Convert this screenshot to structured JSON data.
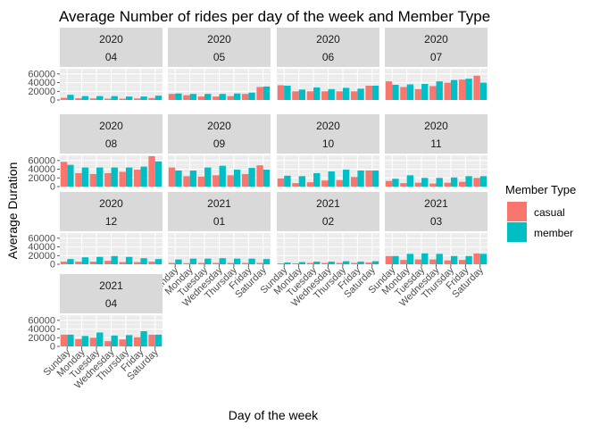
{
  "chart_data": {
    "type": "bar",
    "title": "Average Number of rides per day of the week and Member Type",
    "xlabel": "Day of the week",
    "ylabel": "Average Duration",
    "categories": [
      "Sunday",
      "Monday",
      "Tuesday",
      "Wednesday",
      "Thursday",
      "Friday",
      "Saturday"
    ],
    "ylim": [
      0,
      72000
    ],
    "yticks": [
      0,
      20000,
      40000,
      60000
    ],
    "yticklabels": [
      "0",
      "20000",
      "40000",
      "60000"
    ],
    "legend": {
      "title": "Member Type",
      "position": "right",
      "entries": [
        {
          "name": "casual",
          "color": "#F8766D"
        },
        {
          "name": "member",
          "color": "#00BFC4"
        }
      ]
    },
    "panels": [
      {
        "year": "2020",
        "month": "04",
        "casual": [
          5000,
          4000,
          3500,
          3000,
          3000,
          3500,
          4500
        ],
        "member": [
          12000,
          9000,
          9000,
          9000,
          8000,
          8000,
          10000
        ]
      },
      {
        "year": "2020",
        "month": "05",
        "casual": [
          14000,
          11000,
          8000,
          8000,
          9000,
          14000,
          30000
        ],
        "member": [
          15000,
          14000,
          14000,
          14000,
          15000,
          17000,
          31000
        ]
      },
      {
        "year": "2020",
        "month": "06",
        "casual": [
          34000,
          20000,
          20000,
          20000,
          20000,
          20000,
          33000
        ],
        "member": [
          33000,
          24000,
          29000,
          25000,
          28000,
          26000,
          33000
        ]
      },
      {
        "year": "2020",
        "month": "07",
        "casual": [
          43000,
          30000,
          25000,
          32000,
          40000,
          47000,
          56000
        ],
        "member": [
          35000,
          36000,
          37000,
          43000,
          46000,
          49000,
          40000
        ]
      },
      {
        "year": "2020",
        "month": "08",
        "casual": [
          57000,
          31000,
          29000,
          31000,
          34000,
          39000,
          70000
        ],
        "member": [
          50000,
          44000,
          44000,
          44000,
          44000,
          46000,
          58000
        ]
      },
      {
        "year": "2020",
        "month": "09",
        "casual": [
          44000,
          24000,
          23000,
          26000,
          26000,
          29000,
          49000
        ],
        "member": [
          37000,
          37000,
          44000,
          48000,
          39000,
          43000,
          39000
        ]
      },
      {
        "year": "2020",
        "month": "10",
        "casual": [
          19000,
          8000,
          10000,
          14000,
          15000,
          22000,
          37000
        ],
        "member": [
          25000,
          24000,
          31000,
          35000,
          39000,
          37000,
          37000
        ]
      },
      {
        "year": "2020",
        "month": "11",
        "casual": [
          13000,
          8000,
          9000,
          7000,
          9000,
          11000,
          20000
        ],
        "member": [
          18000,
          26000,
          20000,
          20000,
          21000,
          24000,
          24000
        ]
      },
      {
        "year": "2020",
        "month": "12",
        "casual": [
          6000,
          6000,
          6000,
          8000,
          5000,
          5000,
          6000
        ],
        "member": [
          12000,
          16000,
          17000,
          19000,
          17000,
          14000,
          12000
        ]
      },
      {
        "year": "2021",
        "month": "01",
        "casual": [
          3000,
          2500,
          3000,
          3000,
          3000,
          3000,
          3000
        ],
        "member": [
          11000,
          13000,
          13000,
          14000,
          13000,
          13000,
          12000
        ]
      },
      {
        "year": "2021",
        "month": "02",
        "casual": [
          2000,
          2000,
          3000,
          3000,
          3000,
          3000,
          4000
        ],
        "member": [
          4000,
          5000,
          6000,
          6000,
          7000,
          6000,
          7000
        ]
      },
      {
        "year": "2021",
        "month": "03",
        "casual": [
          19000,
          10000,
          11000,
          11000,
          9000,
          10000,
          25000
        ],
        "member": [
          19000,
          24000,
          25000,
          24000,
          19000,
          19000,
          24000
        ]
      },
      {
        "year": "2021",
        "month": "04",
        "casual": [
          27000,
          17000,
          20000,
          12000,
          16000,
          21000,
          27000
        ],
        "member": [
          27000,
          24000,
          32000,
          25000,
          26000,
          35000,
          27000
        ]
      }
    ]
  }
}
